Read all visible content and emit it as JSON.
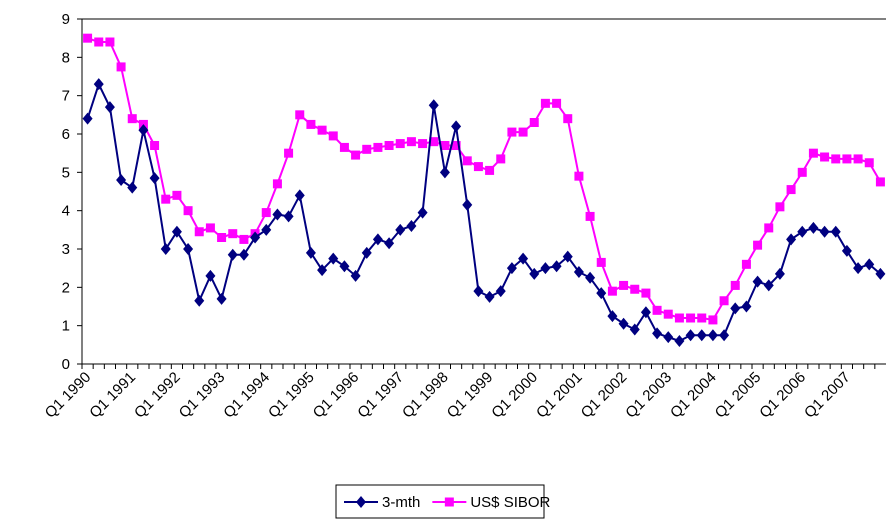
{
  "chart_data": {
    "type": "line",
    "categories": [
      "Q1 1990",
      null,
      null,
      null,
      "Q1 1991",
      null,
      null,
      null,
      "Q1 1992",
      null,
      null,
      null,
      "Q1 1993",
      null,
      null,
      null,
      "Q1 1994",
      null,
      null,
      null,
      "Q1 1995",
      null,
      null,
      null,
      "Q1 1996",
      null,
      null,
      null,
      "Q1 1997",
      null,
      null,
      null,
      "Q1 1998",
      null,
      null,
      null,
      "Q1 1999",
      null,
      null,
      null,
      "Q1 2000",
      null,
      null,
      null,
      "Q1 2001",
      null,
      null,
      null,
      "Q1 2002",
      null,
      null,
      null,
      "Q1 2003",
      null,
      null,
      null,
      "Q1 2004",
      null,
      null,
      null,
      "Q1 2005",
      null,
      null,
      null,
      "Q1 2006",
      null,
      null,
      null,
      "Q1 2007",
      null,
      null,
      null
    ],
    "series": [
      {
        "name": "3-mth",
        "color": "#000080",
        "marker": "diamond",
        "values": [
          6.4,
          7.3,
          6.7,
          4.8,
          4.6,
          6.1,
          4.85,
          3.0,
          3.45,
          3.0,
          1.65,
          2.3,
          1.7,
          2.85,
          2.85,
          3.3,
          3.5,
          3.9,
          3.85,
          4.4,
          2.9,
          2.45,
          2.75,
          2.55,
          2.3,
          2.9,
          3.25,
          3.15,
          3.5,
          3.6,
          3.95,
          6.75,
          5.0,
          6.2,
          4.15,
          1.9,
          1.75,
          1.9,
          2.5,
          2.75,
          2.35,
          2.5,
          2.55,
          2.8,
          2.4,
          2.25,
          1.85,
          1.25,
          1.05,
          0.9,
          1.35,
          0.8,
          0.7,
          0.6,
          0.75,
          0.75,
          0.75,
          0.75,
          1.45,
          1.5,
          2.15,
          2.05,
          2.35,
          3.25,
          3.45,
          3.55,
          3.45,
          3.45,
          2.95,
          2.5,
          2.6,
          2.35
        ]
      },
      {
        "name": "US$ SIBOR",
        "color": "#ff00ff",
        "marker": "square",
        "values": [
          8.5,
          8.4,
          8.4,
          7.75,
          6.4,
          6.25,
          5.7,
          4.3,
          4.4,
          4.0,
          3.45,
          3.55,
          3.3,
          3.4,
          3.25,
          3.4,
          3.95,
          4.7,
          5.5,
          6.5,
          6.25,
          6.1,
          5.95,
          5.65,
          5.45,
          5.6,
          5.65,
          5.7,
          5.75,
          5.8,
          5.75,
          5.8,
          5.7,
          5.7,
          5.3,
          5.15,
          5.05,
          5.35,
          6.05,
          6.05,
          6.3,
          6.8,
          6.8,
          6.4,
          4.9,
          3.85,
          2.65,
          1.9,
          2.05,
          1.95,
          1.85,
          1.4,
          1.3,
          1.2,
          1.2,
          1.2,
          1.15,
          1.65,
          2.05,
          2.6,
          3.1,
          3.55,
          4.1,
          4.55,
          5.0,
          5.5,
          5.4,
          5.35,
          5.35,
          5.35,
          5.25,
          4.75
        ]
      }
    ],
    "ylim": [
      0,
      9
    ],
    "yticks": [
      0,
      1,
      2,
      3,
      4,
      5,
      6,
      7,
      8,
      9
    ],
    "grid": false,
    "legend": "bottom"
  }
}
